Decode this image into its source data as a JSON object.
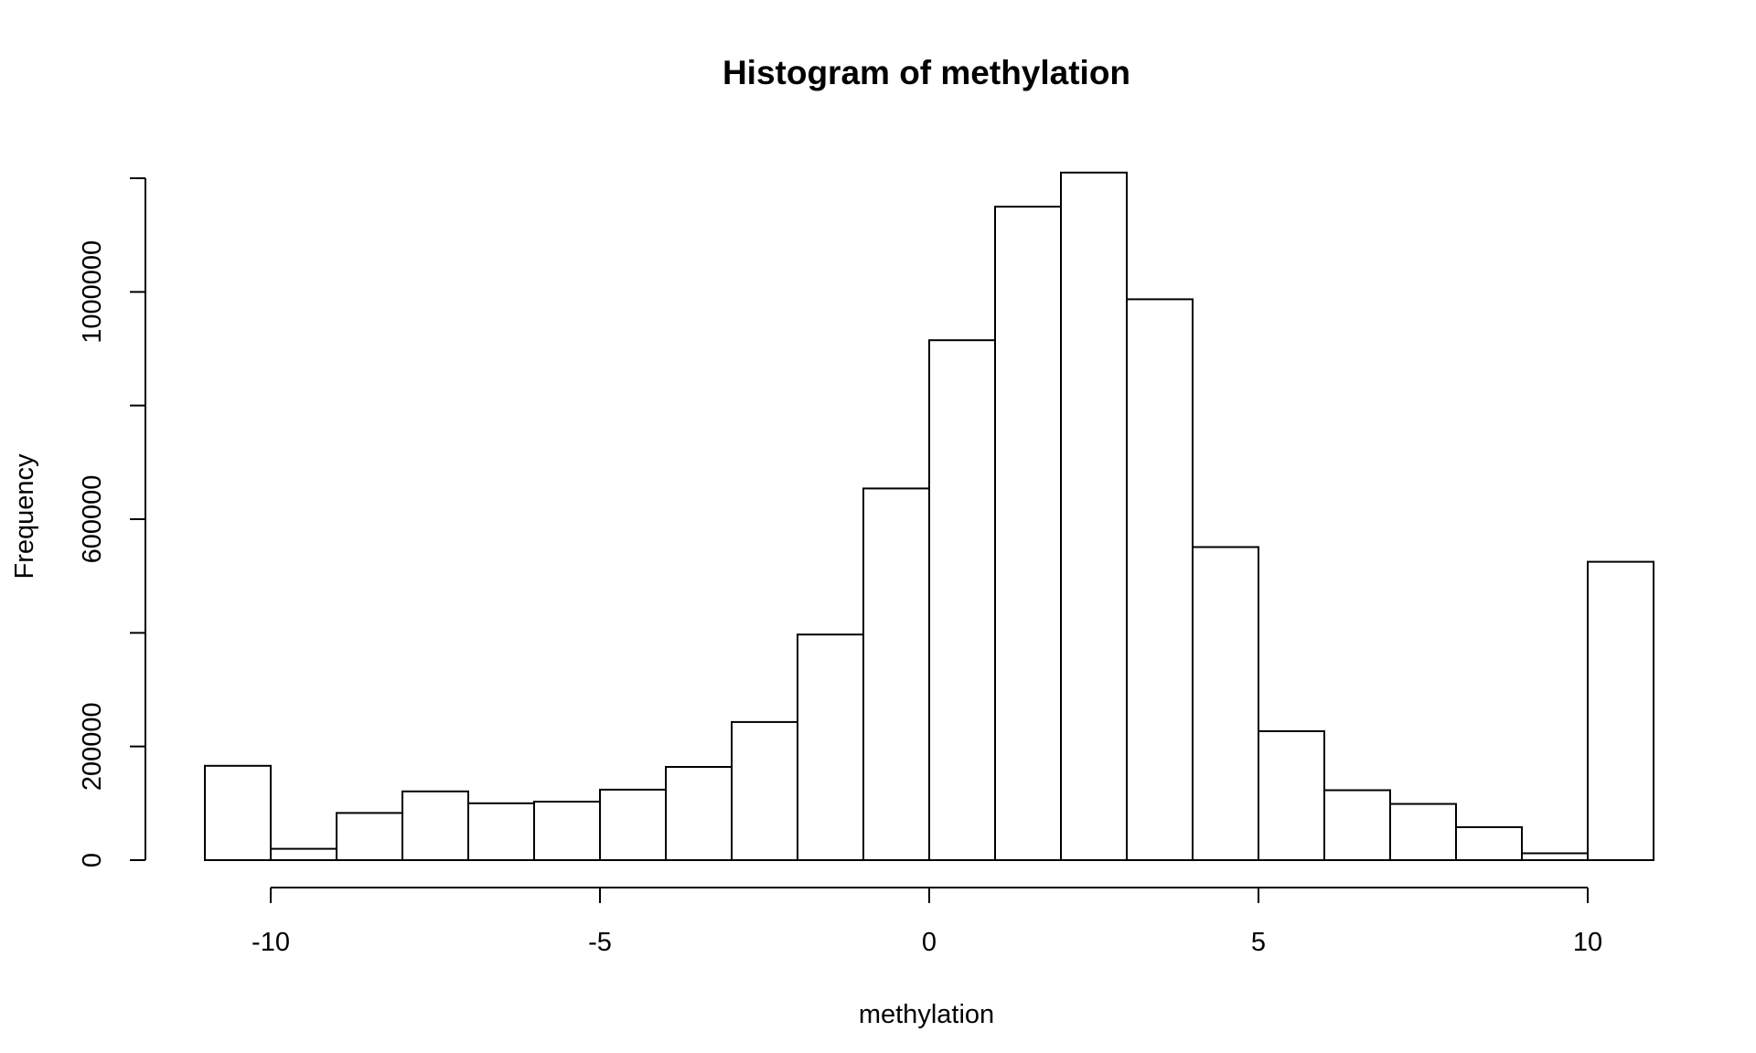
{
  "chart_data": {
    "type": "bar",
    "title": "Histogram of methylation",
    "xlabel": "methylation",
    "ylabel": "Frequency",
    "bin_width": 1,
    "bin_starts": [
      -11,
      -10,
      -9,
      -8,
      -7,
      -6,
      -5,
      -4,
      -3,
      -2,
      -1,
      0,
      1,
      2,
      3,
      4,
      5,
      6,
      7,
      8,
      9,
      10
    ],
    "values": [
      166000,
      20000,
      83000,
      121000,
      100000,
      103000,
      124000,
      164000,
      243000,
      397000,
      654000,
      915000,
      1150000,
      1210000,
      987000,
      551000,
      227000,
      123000,
      99000,
      58000,
      12000,
      525000
    ],
    "xlim": [
      -11,
      11
    ],
    "ylim": [
      0,
      1200000
    ],
    "x_ticks": [
      -10,
      -5,
      0,
      5,
      10
    ],
    "x_tick_labels": [
      "-10",
      "-5",
      "0",
      "5",
      "10"
    ],
    "y_ticks": [
      0,
      200000,
      400000,
      600000,
      800000,
      1000000,
      1200000
    ],
    "y_tick_labels": [
      "0",
      "200000",
      "",
      "600000",
      "",
      "1000000",
      ""
    ],
    "grid": false,
    "legend": "none",
    "colors": {
      "bar_fill": "#ffffff",
      "bar_stroke": "#000000"
    }
  }
}
